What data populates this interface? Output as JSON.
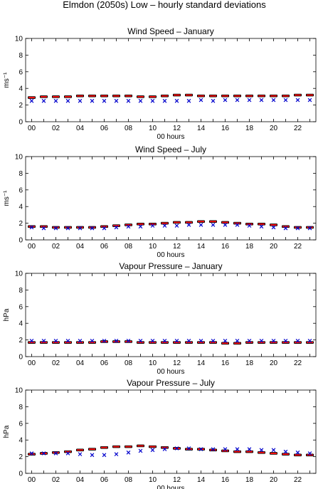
{
  "figure_title": "Elmdon (2050s) Low – hourly standard deviations",
  "colors": {
    "model_bar": "#000000",
    "model_mean": "#ff0000",
    "observed": "#0000cc"
  },
  "chart_data": [
    {
      "type": "scatter",
      "title": "Wind Speed – January",
      "xlabel": "00 hours",
      "ylabel": "ms⁻¹",
      "ylim": [
        0,
        10
      ],
      "yticks": [
        0,
        2,
        4,
        6,
        8,
        10
      ],
      "xticks": [
        "00",
        "02",
        "04",
        "06",
        "08",
        "10",
        "12",
        "14",
        "16",
        "18",
        "20",
        "22"
      ],
      "x": [
        0,
        1,
        2,
        3,
        4,
        5,
        6,
        7,
        8,
        9,
        10,
        11,
        12,
        13,
        14,
        15,
        16,
        17,
        18,
        19,
        20,
        21,
        22,
        23
      ],
      "series": [
        {
          "marker": "bar",
          "values": [
            2.9,
            3.0,
            3.0,
            3.0,
            3.1,
            3.1,
            3.1,
            3.1,
            3.1,
            3.0,
            3.0,
            3.1,
            3.2,
            3.2,
            3.1,
            3.1,
            3.1,
            3.1,
            3.1,
            3.1,
            3.1,
            3.1,
            3.2,
            3.2
          ]
        },
        {
          "marker": "x",
          "values": [
            2.5,
            2.5,
            2.5,
            2.5,
            2.5,
            2.5,
            2.5,
            2.5,
            2.5,
            2.5,
            2.5,
            2.5,
            2.5,
            2.5,
            2.6,
            2.5,
            2.6,
            2.6,
            2.6,
            2.6,
            2.6,
            2.6,
            2.6,
            2.6
          ]
        }
      ]
    },
    {
      "type": "scatter",
      "title": "Wind Speed – July",
      "xlabel": "00 hours",
      "ylabel": "ms⁻¹",
      "ylim": [
        0,
        10
      ],
      "yticks": [
        0,
        2,
        4,
        6,
        8,
        10
      ],
      "xticks": [
        "00",
        "02",
        "04",
        "06",
        "08",
        "10",
        "12",
        "14",
        "16",
        "18",
        "20",
        "22"
      ],
      "x": [
        0,
        1,
        2,
        3,
        4,
        5,
        6,
        7,
        8,
        9,
        10,
        11,
        12,
        13,
        14,
        15,
        16,
        17,
        18,
        19,
        20,
        21,
        22,
        23
      ],
      "series": [
        {
          "marker": "bar",
          "values": [
            1.6,
            1.6,
            1.5,
            1.5,
            1.5,
            1.5,
            1.6,
            1.7,
            1.8,
            1.9,
            1.9,
            2.0,
            2.1,
            2.1,
            2.2,
            2.2,
            2.1,
            2.0,
            1.9,
            1.9,
            1.8,
            1.6,
            1.5,
            1.5
          ]
        },
        {
          "marker": "x",
          "values": [
            1.5,
            1.4,
            1.4,
            1.4,
            1.4,
            1.4,
            1.4,
            1.5,
            1.6,
            1.6,
            1.7,
            1.7,
            1.7,
            1.8,
            1.8,
            1.8,
            1.8,
            1.8,
            1.7,
            1.6,
            1.5,
            1.4,
            1.4,
            1.4
          ]
        }
      ]
    },
    {
      "type": "scatter",
      "title": "Vapour Pressure – January",
      "xlabel": "00 hours",
      "ylabel": "hPa",
      "ylim": [
        0,
        10
      ],
      "yticks": [
        0,
        2,
        4,
        6,
        8,
        10
      ],
      "xticks": [
        "00",
        "02",
        "04",
        "06",
        "08",
        "10",
        "12",
        "14",
        "16",
        "18",
        "20",
        "22"
      ],
      "x": [
        0,
        1,
        2,
        3,
        4,
        5,
        6,
        7,
        8,
        9,
        10,
        11,
        12,
        13,
        14,
        15,
        16,
        17,
        18,
        19,
        20,
        21,
        22,
        23
      ],
      "series": [
        {
          "marker": "bar",
          "values": [
            1.7,
            1.7,
            1.7,
            1.7,
            1.7,
            1.7,
            1.8,
            1.8,
            1.8,
            1.7,
            1.7,
            1.7,
            1.7,
            1.7,
            1.7,
            1.7,
            1.6,
            1.6,
            1.7,
            1.7,
            1.7,
            1.7,
            1.7,
            1.7
          ]
        },
        {
          "marker": "x",
          "values": [
            1.9,
            1.9,
            1.9,
            1.9,
            1.9,
            1.9,
            1.9,
            1.9,
            1.9,
            1.9,
            1.9,
            1.9,
            1.9,
            1.9,
            1.9,
            1.9,
            1.9,
            1.9,
            1.9,
            1.9,
            1.9,
            1.9,
            1.9,
            1.9
          ]
        }
      ]
    },
    {
      "type": "scatter",
      "title": "Vapour Pressure – July",
      "xlabel": "00 hours",
      "ylabel": "hPa",
      "ylim": [
        0,
        10
      ],
      "yticks": [
        0,
        2,
        4,
        6,
        8,
        10
      ],
      "xticks": [
        "00",
        "02",
        "04",
        "06",
        "08",
        "10",
        "12",
        "14",
        "16",
        "18",
        "20",
        "22"
      ],
      "x": [
        0,
        1,
        2,
        3,
        4,
        5,
        6,
        7,
        8,
        9,
        10,
        11,
        12,
        13,
        14,
        15,
        16,
        17,
        18,
        19,
        20,
        21,
        22,
        23
      ],
      "series": [
        {
          "marker": "bar",
          "values": [
            2.3,
            2.4,
            2.5,
            2.6,
            2.8,
            2.9,
            3.1,
            3.2,
            3.2,
            3.3,
            3.2,
            3.1,
            3.0,
            2.9,
            2.9,
            2.8,
            2.7,
            2.6,
            2.6,
            2.5,
            2.4,
            2.3,
            2.2,
            2.2
          ]
        },
        {
          "marker": "x",
          "values": [
            2.4,
            2.4,
            2.4,
            2.4,
            2.3,
            2.2,
            2.2,
            2.3,
            2.5,
            2.7,
            2.8,
            2.9,
            3.0,
            3.0,
            2.9,
            2.9,
            2.9,
            2.9,
            2.9,
            2.8,
            2.8,
            2.6,
            2.5,
            2.4
          ]
        }
      ]
    }
  ]
}
